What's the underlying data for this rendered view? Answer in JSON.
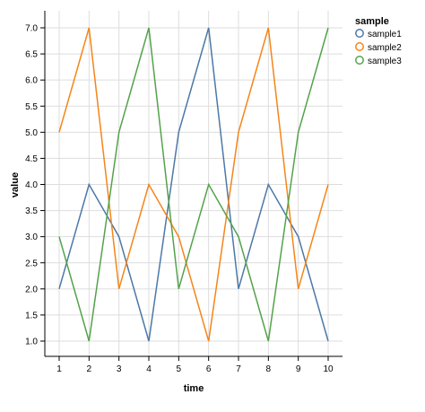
{
  "chart_data": {
    "type": "line",
    "xlabel": "time",
    "ylabel": "value",
    "x": [
      1,
      2,
      3,
      4,
      5,
      6,
      7,
      8,
      9,
      10
    ],
    "xlim": [
      0.5,
      10.5
    ],
    "ylim": [
      0.75,
      7.3
    ],
    "xticks": [
      1,
      2,
      3,
      4,
      5,
      6,
      7,
      8,
      9,
      10
    ],
    "yticks": [
      "1.0",
      "1.5",
      "2.0",
      "2.5",
      "3.0",
      "3.5",
      "4.0",
      "4.5",
      "5.0",
      "5.5",
      "6.0",
      "6.5",
      "7.0"
    ],
    "grid": true,
    "legend": {
      "title": "sample",
      "position": "top-right"
    },
    "series": [
      {
        "name": "sample1",
        "color": "#4c78a8",
        "values": [
          2,
          4,
          3,
          1,
          5,
          7,
          2,
          4,
          3,
          1
        ]
      },
      {
        "name": "sample2",
        "color": "#f58518",
        "values": [
          5,
          7,
          2,
          4,
          3,
          1,
          5,
          7,
          2,
          4
        ]
      },
      {
        "name": "sample3",
        "color": "#54a24b",
        "values": [
          3,
          1,
          5,
          7,
          2,
          4,
          3,
          1,
          5,
          7
        ]
      }
    ]
  }
}
